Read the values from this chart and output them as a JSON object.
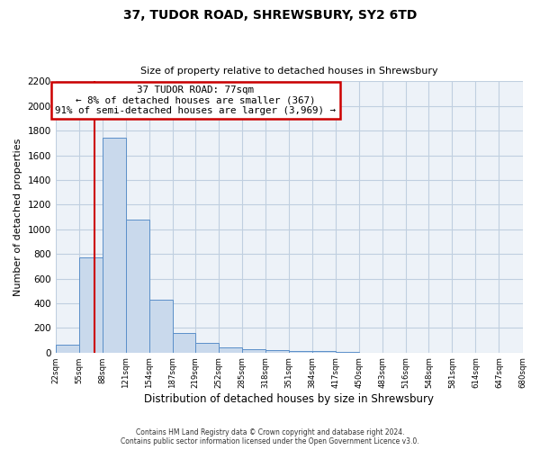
{
  "title": "37, TUDOR ROAD, SHREWSBURY, SY2 6TD",
  "subtitle": "Size of property relative to detached houses in Shrewsbury",
  "xlabel": "Distribution of detached houses by size in Shrewsbury",
  "ylabel": "Number of detached properties",
  "bin_edges": [
    22,
    55,
    88,
    121,
    154,
    187,
    219,
    252,
    285,
    318,
    351,
    384,
    417,
    450,
    483,
    516,
    548,
    581,
    614,
    647,
    680
  ],
  "bin_heights": [
    60,
    770,
    1740,
    1075,
    430,
    155,
    80,
    40,
    25,
    20,
    15,
    10,
    5,
    0,
    0,
    0,
    0,
    0,
    0,
    0
  ],
  "bar_color": "#c9d9ec",
  "bar_edge_color": "#5b8fc9",
  "property_value": 77,
  "vline_color": "#cc0000",
  "annotation_line1": "37 TUDOR ROAD: 77sqm",
  "annotation_line2": "← 8% of detached houses are smaller (367)",
  "annotation_line3": "91% of semi-detached houses are larger (3,969) →",
  "annotation_box_color": "#ffffff",
  "annotation_box_edge_color": "#cc0000",
  "ylim": [
    0,
    2200
  ],
  "yticks": [
    0,
    200,
    400,
    600,
    800,
    1000,
    1200,
    1400,
    1600,
    1800,
    2000,
    2200
  ],
  "tick_labels": [
    "22sqm",
    "55sqm",
    "88sqm",
    "121sqm",
    "154sqm",
    "187sqm",
    "219sqm",
    "252sqm",
    "285sqm",
    "318sqm",
    "351sqm",
    "384sqm",
    "417sqm",
    "450sqm",
    "483sqm",
    "516sqm",
    "548sqm",
    "581sqm",
    "614sqm",
    "647sqm",
    "680sqm"
  ],
  "footer_line1": "Contains HM Land Registry data © Crown copyright and database right 2024.",
  "footer_line2": "Contains public sector information licensed under the Open Government Licence v3.0.",
  "grid_color": "#c0cfe0",
  "bg_color": "#edf2f8"
}
